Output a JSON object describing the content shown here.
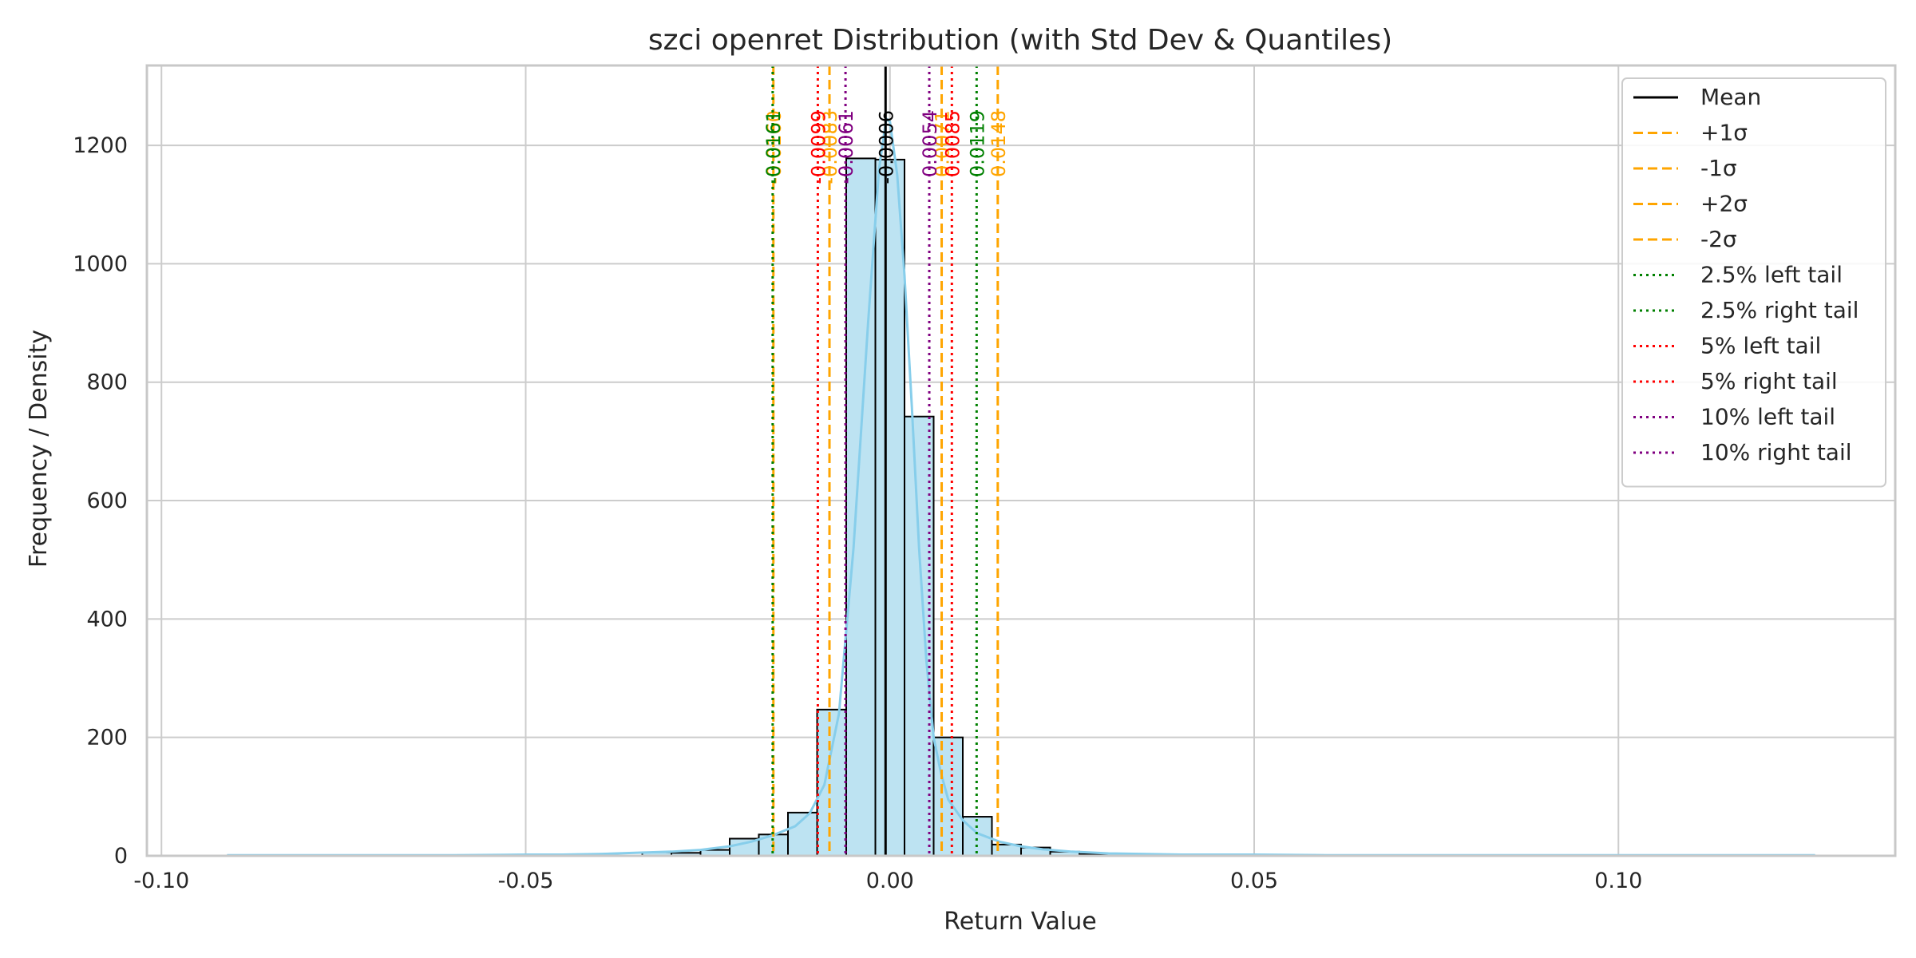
{
  "chart_data": {
    "type": "histogram",
    "title": "szci openret Distribution (with Std Dev & Quantiles)",
    "xlabel": "Return Value",
    "ylabel": "Frequency / Density",
    "xlim": [
      -0.102,
      0.138
    ],
    "ylim": [
      0,
      1335
    ],
    "grid": true,
    "x_ticks": [
      {
        "value": -0.1,
        "label": "-0.10"
      },
      {
        "value": -0.05,
        "label": "-0.05"
      },
      {
        "value": 0.0,
        "label": "0.00"
      },
      {
        "value": 0.05,
        "label": "0.05"
      },
      {
        "value": 0.1,
        "label": "0.10"
      }
    ],
    "y_ticks": [
      {
        "value": 0,
        "label": "0"
      },
      {
        "value": 200,
        "label": "200"
      },
      {
        "value": 400,
        "label": "400"
      },
      {
        "value": 600,
        "label": "600"
      },
      {
        "value": 800,
        "label": "800"
      },
      {
        "value": 1000,
        "label": "1000"
      },
      {
        "value": 1200,
        "label": "1200"
      }
    ],
    "bins": [
      {
        "x0": -0.034,
        "x1": -0.03,
        "count": 6
      },
      {
        "x0": -0.03,
        "x1": -0.026,
        "count": 5
      },
      {
        "x0": -0.026,
        "x1": -0.022,
        "count": 10
      },
      {
        "x0": -0.022,
        "x1": -0.018,
        "count": 29
      },
      {
        "x0": -0.018,
        "x1": -0.014,
        "count": 36
      },
      {
        "x0": -0.014,
        "x1": -0.01,
        "count": 73
      },
      {
        "x0": -0.01,
        "x1": -0.006,
        "count": 247
      },
      {
        "x0": -0.006,
        "x1": -0.002,
        "count": 1178
      },
      {
        "x0": -0.002,
        "x1": 0.002,
        "count": 1176
      },
      {
        "x0": 0.002,
        "x1": 0.006,
        "count": 742
      },
      {
        "x0": 0.006,
        "x1": 0.01,
        "count": 200
      },
      {
        "x0": 0.01,
        "x1": 0.014,
        "count": 66
      },
      {
        "x0": 0.014,
        "x1": 0.018,
        "count": 19
      },
      {
        "x0": 0.018,
        "x1": 0.022,
        "count": 14
      },
      {
        "x0": 0.022,
        "x1": 0.026,
        "count": 7
      },
      {
        "x0": 0.026,
        "x1": 0.03,
        "count": 3
      }
    ],
    "kde": [
      [
        -0.091,
        1
      ],
      [
        -0.08,
        1
      ],
      [
        -0.07,
        1
      ],
      [
        -0.06,
        1
      ],
      [
        -0.05,
        2
      ],
      [
        -0.045,
        2
      ],
      [
        -0.04,
        3
      ],
      [
        -0.035,
        5
      ],
      [
        -0.03,
        7
      ],
      [
        -0.026,
        10
      ],
      [
        -0.022,
        16
      ],
      [
        -0.019,
        24
      ],
      [
        -0.016,
        35
      ],
      [
        -0.013,
        50
      ],
      [
        -0.011,
        72
      ],
      [
        -0.009,
        120
      ],
      [
        -0.007,
        240
      ],
      [
        -0.005,
        520
      ],
      [
        -0.003,
        900
      ],
      [
        -0.0015,
        1160
      ],
      [
        -0.0005,
        1245
      ],
      [
        0.0,
        1240
      ],
      [
        0.001,
        1150
      ],
      [
        0.002,
        980
      ],
      [
        0.003,
        760
      ],
      [
        0.004,
        520
      ],
      [
        0.005,
        330
      ],
      [
        0.006,
        200
      ],
      [
        0.007,
        140
      ],
      [
        0.008,
        95
      ],
      [
        0.01,
        60
      ],
      [
        0.012,
        38
      ],
      [
        0.015,
        24
      ],
      [
        0.018,
        16
      ],
      [
        0.021,
        11
      ],
      [
        0.025,
        7
      ],
      [
        0.03,
        4
      ],
      [
        0.04,
        2
      ],
      [
        0.05,
        2
      ],
      [
        0.06,
        1
      ],
      [
        0.07,
        1
      ],
      [
        0.08,
        1
      ],
      [
        0.09,
        1
      ],
      [
        0.1,
        1
      ],
      [
        0.11,
        1
      ],
      [
        0.12,
        1
      ],
      [
        0.127,
        1
      ]
    ],
    "reference_lines": [
      {
        "key": "mean",
        "value": -0.0006,
        "label": "-0.0006",
        "legend": "Mean",
        "color": "#000000",
        "style": "solid"
      },
      {
        "key": "plus1",
        "value": 0.0071,
        "label": "0.0071",
        "legend": "+1σ",
        "color": "#ffa500",
        "style": "dashed"
      },
      {
        "key": "minus1",
        "value": -0.0083,
        "label": "-0.0083",
        "legend": "-1σ",
        "color": "#ffa500",
        "style": "dashed"
      },
      {
        "key": "plus2",
        "value": 0.0148,
        "label": "0.0148",
        "legend": "+2σ",
        "color": "#ffa500",
        "style": "dashed"
      },
      {
        "key": "minus2",
        "value": -0.016,
        "label": "-0.0160",
        "legend": "-2σ",
        "color": "#ffa500",
        "style": "dashed"
      },
      {
        "key": "q025l",
        "value": -0.0161,
        "label": "-0.0161",
        "legend": "2.5% left tail",
        "color": "#008000",
        "style": "dotted"
      },
      {
        "key": "q025r",
        "value": 0.0119,
        "label": "0.0119",
        "legend": "2.5% right tail",
        "color": "#008000",
        "style": "dotted"
      },
      {
        "key": "q05l",
        "value": -0.0099,
        "label": "-0.0099",
        "legend": "5% left tail",
        "color": "#ff0000",
        "style": "dotted"
      },
      {
        "key": "q05r",
        "value": 0.0085,
        "label": "0.0085",
        "legend": "5% right tail",
        "color": "#ff0000",
        "style": "dotted"
      },
      {
        "key": "q10l",
        "value": -0.0061,
        "label": "-0.0061",
        "legend": "10% left tail",
        "color": "#800080",
        "style": "dotted"
      },
      {
        "key": "q10r",
        "value": 0.0054,
        "label": "0.0054",
        "legend": "10% right tail",
        "color": "#800080",
        "style": "dotted"
      }
    ],
    "legend_order": [
      "mean",
      "plus1",
      "minus1",
      "plus2",
      "minus2",
      "q025l",
      "q025r",
      "q05l",
      "q05r",
      "q10l",
      "q10r"
    ],
    "legend_position": "top-right",
    "colors": {
      "bar_fill": "#bde3f2",
      "bar_edge": "#000000",
      "kde_line": "#87ceeb",
      "grid": "#cccccc",
      "frame": "#c8c8c8",
      "text": "#262626"
    }
  }
}
